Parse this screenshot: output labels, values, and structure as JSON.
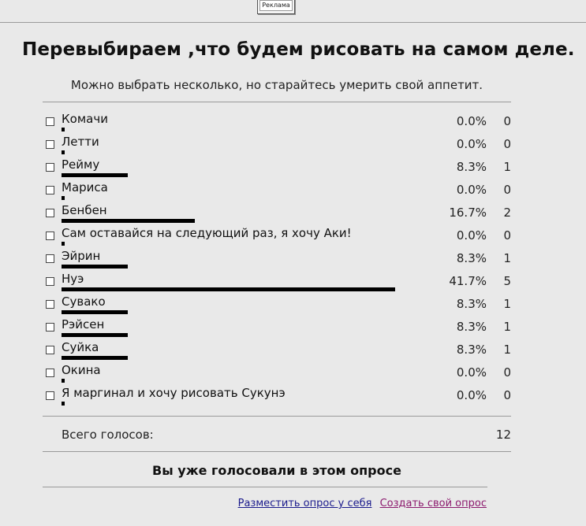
{
  "ad": {
    "label": "Реклама"
  },
  "poll": {
    "title": "Перевыбираем ,что будем рисовать на самом деле.",
    "subtitle": "Можно выбрать несколько, но старайтесь умерить свой аппетит.",
    "options": [
      {
        "label": "Комачи",
        "percent": "0.0%",
        "votes": "0",
        "fraction": 0.0
      },
      {
        "label": "Летти",
        "percent": "0.0%",
        "votes": "0",
        "fraction": 0.0
      },
      {
        "label": "Рейму",
        "percent": "8.3%",
        "votes": "1",
        "fraction": 0.083
      },
      {
        "label": "Мариса",
        "percent": "0.0%",
        "votes": "0",
        "fraction": 0.0
      },
      {
        "label": "Бенбен",
        "percent": "16.7%",
        "votes": "2",
        "fraction": 0.167
      },
      {
        "label": "Сам оставайся на следующий раз, я хочу Аки!",
        "percent": "0.0%",
        "votes": "0",
        "fraction": 0.0
      },
      {
        "label": "Эйрин",
        "percent": "8.3%",
        "votes": "1",
        "fraction": 0.083
      },
      {
        "label": "Нуэ",
        "percent": "41.7%",
        "votes": "5",
        "fraction": 0.417
      },
      {
        "label": "Сувако",
        "percent": "8.3%",
        "votes": "1",
        "fraction": 0.083
      },
      {
        "label": "Рэйсен",
        "percent": "8.3%",
        "votes": "1",
        "fraction": 0.083
      },
      {
        "label": "Суйка",
        "percent": "8.3%",
        "votes": "1",
        "fraction": 0.083
      },
      {
        "label": "Окина",
        "percent": "0.0%",
        "votes": "0",
        "fraction": 0.0
      },
      {
        "label": "Я маргинал и хочу рисовать Сукунэ",
        "percent": "0.0%",
        "votes": "0",
        "fraction": 0.0
      }
    ],
    "total_label": "Всего голосов:",
    "total_value": "12",
    "voted_message": "Вы уже голосовали в этом опросе"
  },
  "links": {
    "place_poll": "Разместить опрос у себя",
    "create_poll": "Создать свой опрос"
  },
  "colors": {
    "background": "#e9e9e9",
    "bar": "#000000",
    "link_place": "#1a1a8c",
    "link_create": "#8c1a6e"
  }
}
